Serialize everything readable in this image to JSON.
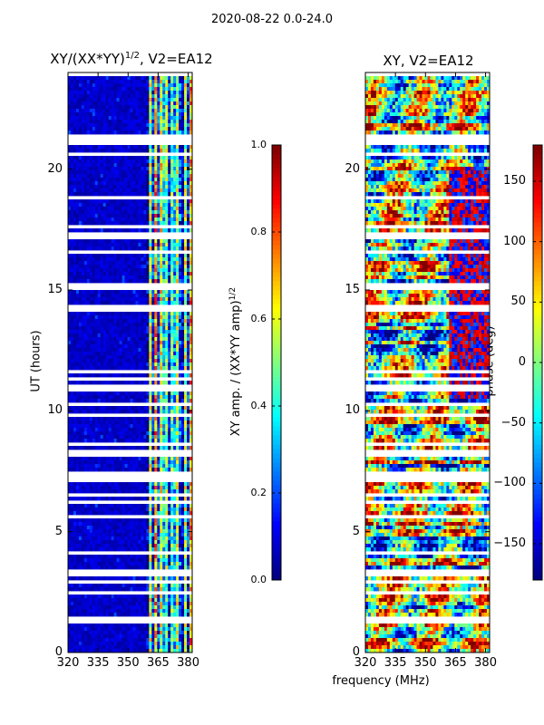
{
  "suptitle": "2020-08-22 0.0-24.0",
  "chart_data": [
    {
      "type": "heatmap",
      "title": "XY/(XX*YY)^(1/2), V2=EA12",
      "title_main": "XY/(XX*YY)",
      "title_exp": "1/2",
      "title_tail": ", V2=EA12",
      "xlabel": "",
      "ylabel": "UT (hours)",
      "xlim": [
        320,
        382
      ],
      "ylim": [
        0,
        24
      ],
      "xticks": [
        320,
        335,
        350,
        365,
        380
      ],
      "yticks": [
        0,
        5,
        10,
        15,
        20
      ],
      "colorbar": {
        "label_main": "XY amp. / (XX*YY amp)",
        "label_exp": "1/2",
        "range": [
          0.0,
          1.0
        ],
        "ticks": [
          "0.0",
          "0.2",
          "0.4",
          "0.6",
          "0.8",
          "1.0"
        ]
      }
    },
    {
      "type": "heatmap",
      "title": "XY, V2=EA12",
      "xlabel": "frequency (MHz)",
      "ylabel": "",
      "xlim": [
        320,
        382
      ],
      "ylim": [
        0,
        24
      ],
      "xticks": [
        320,
        335,
        350,
        365,
        380
      ],
      "yticks": [
        0,
        5,
        10,
        15,
        20
      ],
      "colorbar": {
        "label": "phase (deg)",
        "range": [
          -180,
          180
        ],
        "ticks": [
          150,
          100,
          50,
          0,
          -50,
          -100,
          -150
        ]
      }
    }
  ]
}
